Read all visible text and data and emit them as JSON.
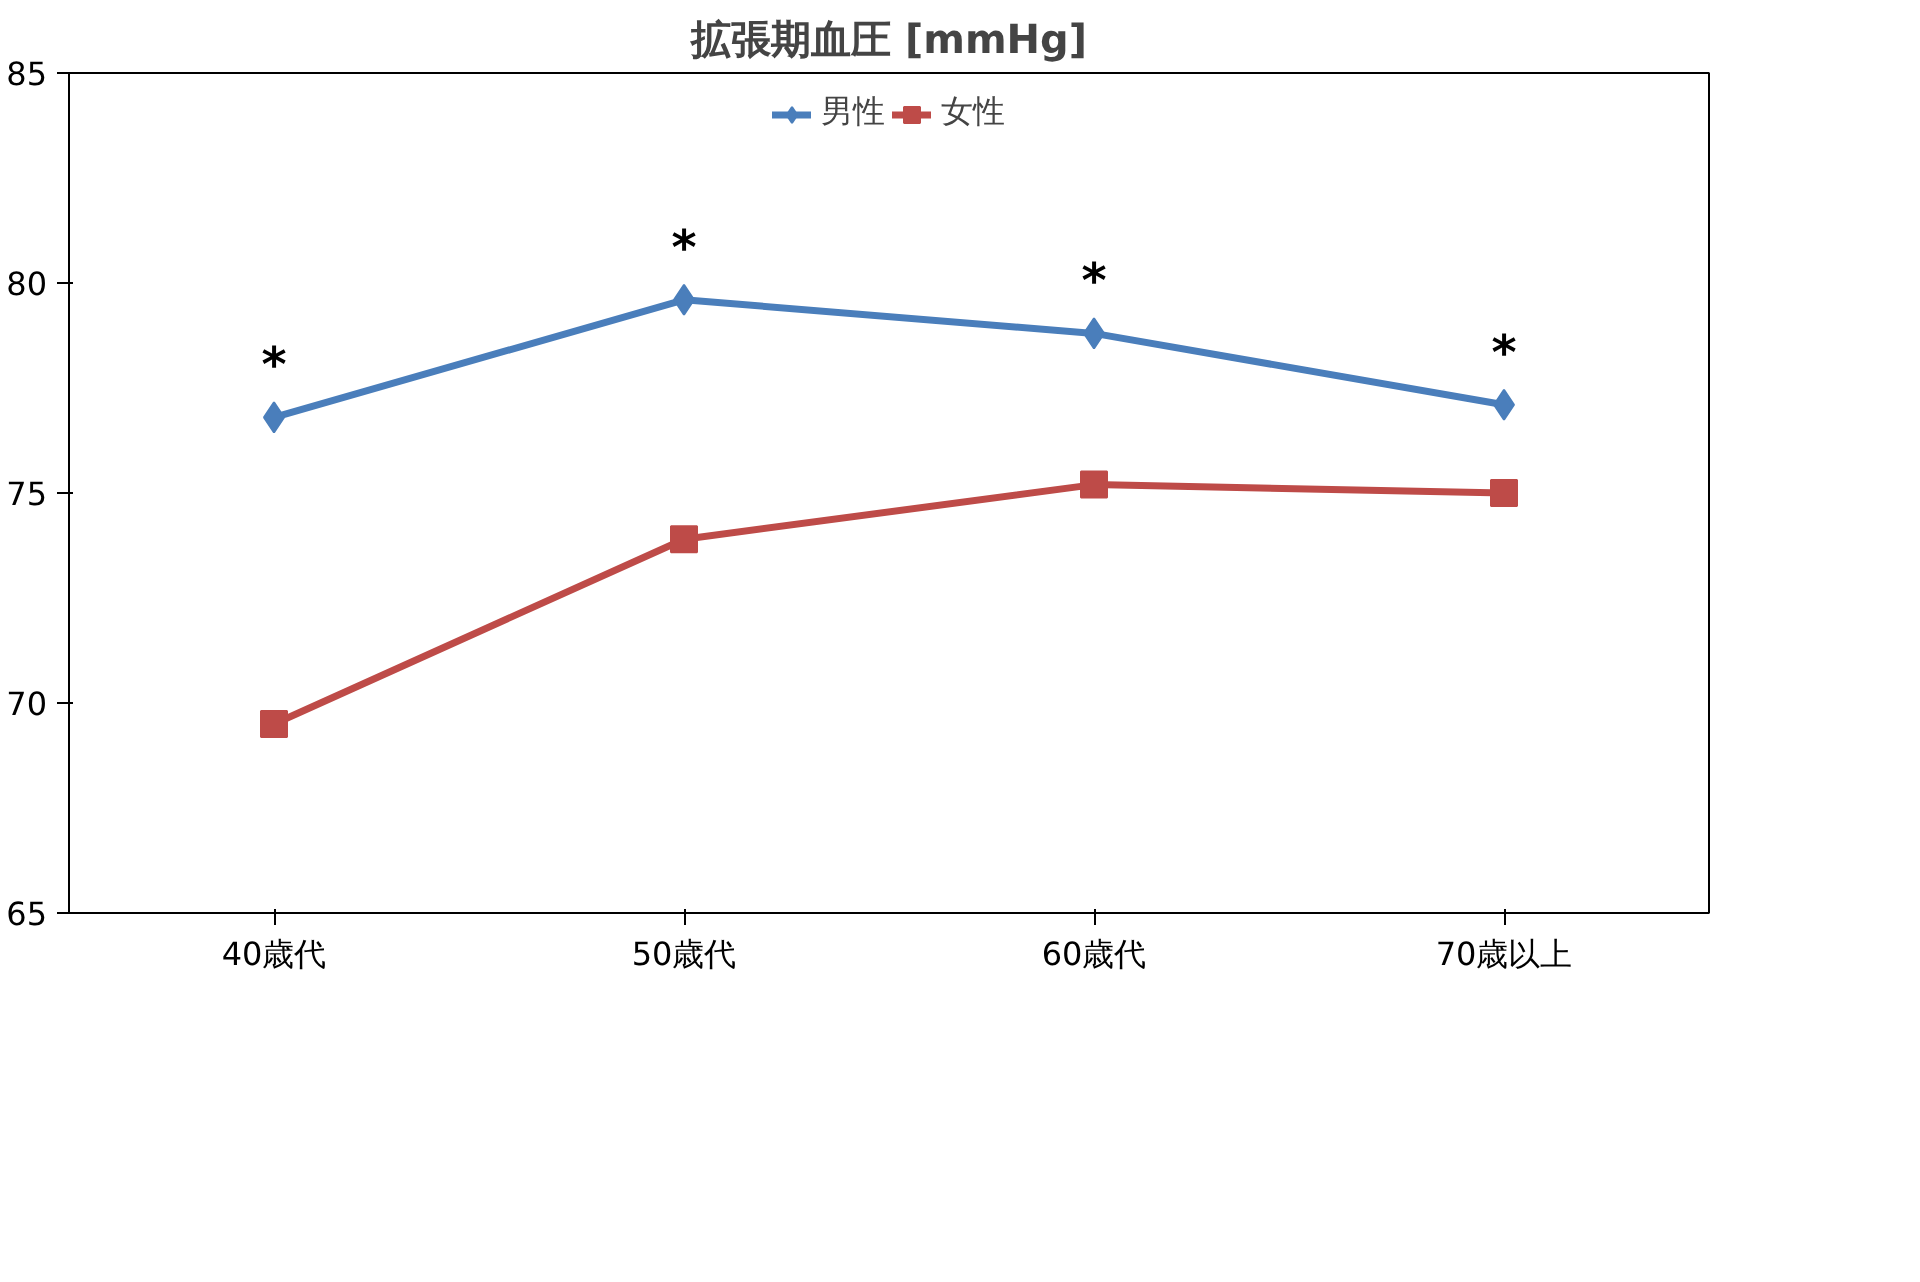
{
  "chart_data": {
    "type": "line",
    "title": "拡張期血圧 [mmHg]",
    "categories": [
      "40歳代",
      "50歳代",
      "60歳代",
      "70歳以上"
    ],
    "series": [
      {
        "name": "男性",
        "color": "#4a7ebb",
        "marker": "diamond",
        "values": [
          76.8,
          79.6,
          78.8,
          77.1
        ]
      },
      {
        "name": "女性",
        "color": "#be4b48",
        "marker": "square",
        "values": [
          69.5,
          73.9,
          75.2,
          75.0
        ]
      }
    ],
    "ylim": [
      65,
      85
    ],
    "yticks": [
      65,
      70,
      75,
      80,
      85
    ],
    "grid": false,
    "legend": "top",
    "annotations": [
      {
        "text": "*",
        "x": "40歳代",
        "y": 76.8
      },
      {
        "text": "*",
        "x": "50歳代",
        "y": 79.6
      },
      {
        "text": "*",
        "x": "60歳代",
        "y": 78.8
      },
      {
        "text": "*",
        "x": "70歳以上",
        "y": 77.1
      }
    ]
  }
}
